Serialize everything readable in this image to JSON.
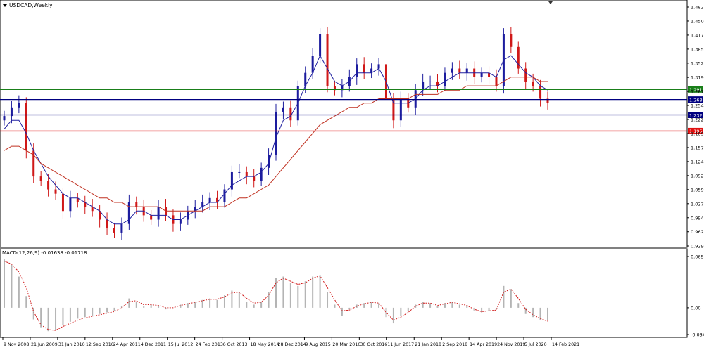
{
  "main_chart": {
    "title": "USDCAD,Weekly",
    "y_axis_ticks": [
      "1.4825",
      "1.4500",
      "1.4175",
      "1.3850",
      "1.3525",
      "1.3195",
      "1.2870",
      "1.2545",
      "1.2220",
      "1.1895",
      "1.1570",
      "1.1245",
      "1.0920",
      "1.0595",
      "1.0270",
      "0.9945",
      "0.9620",
      "0.9290"
    ],
    "levels": [
      {
        "value": 1.2915,
        "label": "1.2915",
        "color": "#1a7f1a"
      },
      {
        "value": 1.2682,
        "label": "1.2682",
        "color": "#000080"
      },
      {
        "value": 1.2326,
        "label": "1.2326",
        "color": "#000080"
      },
      {
        "value": 1.1953,
        "label": "1.1953",
        "color": "#e01010"
      }
    ]
  },
  "macd_panel": {
    "title": "MACD(12,26,9) -0.01638 -0.01718",
    "y_axis_ticks": [
      "0.06573",
      "0.00",
      "-0.03436"
    ]
  },
  "x_axis_labels": [
    "9 Nov 2008",
    "21 Jun 2009",
    "31 Jan 2010",
    "12 Sep 2010",
    "24 Apr 2011",
    "4 Dec 2011",
    "15 Jul 2012",
    "24 Feb 2013",
    "6 Oct 2013",
    "18 May 2014",
    "28 Dec 2014",
    "9 Aug 2015",
    "20 Mar 2016",
    "30 Oct 2016",
    "11 Jun 2017",
    "21 Jan 2018",
    "2 Sep 2018",
    "14 Apr 2019",
    "24 Nov 2019",
    "5 Jul 2020",
    "14 Feb 2021"
  ],
  "colors": {
    "bull_candle": "#1c1c9e",
    "bear_candle": "#d01818",
    "ma_fast": "#2020a0",
    "ma_slow": "#c03020",
    "macd_hist": "#b4b4b4",
    "macd_signal": "#d01818",
    "level_green": "#1a7f1a",
    "level_navy": "#000080",
    "level_red": "#e01010"
  },
  "chart_data": [
    {
      "type": "candlestick",
      "title": "USDCAD,Weekly",
      "ylim": [
        0.929,
        1.4825
      ],
      "x": [
        "2008-11",
        "2009-01",
        "2009-03",
        "2009-05",
        "2009-07",
        "2009-09",
        "2009-11",
        "2010-01",
        "2010-03",
        "2010-05",
        "2010-07",
        "2010-09",
        "2010-11",
        "2011-01",
        "2011-03",
        "2011-05",
        "2011-07",
        "2011-09",
        "2011-11",
        "2012-01",
        "2012-03",
        "2012-05",
        "2012-07",
        "2012-09",
        "2012-11",
        "2013-01",
        "2013-03",
        "2013-05",
        "2013-07",
        "2013-09",
        "2013-11",
        "2014-01",
        "2014-03",
        "2014-05",
        "2014-07",
        "2014-09",
        "2014-11",
        "2015-01",
        "2015-03",
        "2015-05",
        "2015-07",
        "2015-09",
        "2015-11",
        "2016-01",
        "2016-03",
        "2016-05",
        "2016-07",
        "2016-09",
        "2016-11",
        "2017-01",
        "2017-03",
        "2017-05",
        "2017-07",
        "2017-09",
        "2017-11",
        "2018-01",
        "2018-03",
        "2018-05",
        "2018-07",
        "2018-09",
        "2018-11",
        "2019-01",
        "2019-03",
        "2019-05",
        "2019-07",
        "2019-09",
        "2019-11",
        "2020-01",
        "2020-03",
        "2020-05",
        "2020-07",
        "2020-09",
        "2020-11",
        "2021-01",
        "2021-02"
      ],
      "close": [
        1.23,
        1.25,
        1.26,
        1.15,
        1.09,
        1.08,
        1.06,
        1.05,
        1.01,
        1.04,
        1.03,
        1.02,
        1.01,
        0.99,
        0.97,
        0.96,
        0.98,
        1.03,
        1.02,
        1.0,
        0.99,
        1.02,
        1.0,
        0.98,
        0.99,
        1.01,
        1.02,
        1.03,
        1.04,
        1.03,
        1.06,
        1.1,
        1.1,
        1.09,
        1.08,
        1.11,
        1.14,
        1.24,
        1.25,
        1.22,
        1.3,
        1.33,
        1.37,
        1.42,
        1.3,
        1.29,
        1.3,
        1.32,
        1.35,
        1.33,
        1.34,
        1.35,
        1.27,
        1.22,
        1.27,
        1.25,
        1.29,
        1.31,
        1.31,
        1.3,
        1.33,
        1.34,
        1.33,
        1.34,
        1.32,
        1.33,
        1.32,
        1.3,
        1.42,
        1.39,
        1.34,
        1.31,
        1.3,
        1.27,
        1.26
      ],
      "series": [
        {
          "name": "",
          "kind": "moving-average-fast",
          "values": [
            1.2,
            1.22,
            1.22,
            1.19,
            1.15,
            1.12,
            1.09,
            1.07,
            1.05,
            1.04,
            1.04,
            1.03,
            1.02,
            1.01,
            0.99,
            0.98,
            0.98,
            0.99,
            1.01,
            1.01,
            1.0,
            1.0,
            1.0,
            0.99,
            0.99,
            1.0,
            1.01,
            1.02,
            1.03,
            1.03,
            1.05,
            1.07,
            1.08,
            1.09,
            1.09,
            1.1,
            1.12,
            1.18,
            1.22,
            1.23,
            1.26,
            1.3,
            1.33,
            1.37,
            1.34,
            1.31,
            1.3,
            1.31,
            1.33,
            1.33,
            1.33,
            1.34,
            1.31,
            1.26,
            1.26,
            1.26,
            1.27,
            1.29,
            1.3,
            1.3,
            1.31,
            1.32,
            1.33,
            1.33,
            1.33,
            1.33,
            1.33,
            1.32,
            1.36,
            1.37,
            1.35,
            1.33,
            1.32,
            1.3,
            1.29
          ]
        },
        {
          "name": "",
          "kind": "moving-average-slow",
          "values": [
            1.15,
            1.16,
            1.16,
            1.15,
            1.14,
            1.12,
            1.11,
            1.1,
            1.09,
            1.08,
            1.07,
            1.06,
            1.05,
            1.04,
            1.04,
            1.03,
            1.03,
            1.02,
            1.02,
            1.02,
            1.02,
            1.02,
            1.01,
            1.01,
            1.01,
            1.01,
            1.01,
            1.01,
            1.02,
            1.02,
            1.02,
            1.03,
            1.04,
            1.04,
            1.05,
            1.06,
            1.07,
            1.09,
            1.11,
            1.13,
            1.15,
            1.17,
            1.19,
            1.21,
            1.22,
            1.23,
            1.24,
            1.25,
            1.25,
            1.26,
            1.26,
            1.27,
            1.27,
            1.27,
            1.27,
            1.27,
            1.28,
            1.28,
            1.28,
            1.28,
            1.29,
            1.29,
            1.29,
            1.3,
            1.3,
            1.3,
            1.3,
            1.3,
            1.31,
            1.32,
            1.32,
            1.32,
            1.32,
            1.31,
            1.31
          ]
        }
      ],
      "horizontal_levels": [
        1.2915,
        1.2682,
        1.2326,
        1.1953
      ]
    },
    {
      "type": "bar",
      "title": "MACD(12,26,9) -0.01638 -0.01718",
      "ylim": [
        -0.03436,
        0.06573
      ],
      "x": [
        "2008-11",
        "2009-01",
        "2009-03",
        "2009-05",
        "2009-07",
        "2009-09",
        "2009-11",
        "2010-01",
        "2010-03",
        "2010-05",
        "2010-07",
        "2010-09",
        "2010-11",
        "2011-01",
        "2011-03",
        "2011-05",
        "2011-07",
        "2011-09",
        "2011-11",
        "2012-01",
        "2012-03",
        "2012-05",
        "2012-07",
        "2012-09",
        "2012-11",
        "2013-01",
        "2013-03",
        "2013-05",
        "2013-07",
        "2013-09",
        "2013-11",
        "2014-01",
        "2014-03",
        "2014-05",
        "2014-07",
        "2014-09",
        "2014-11",
        "2015-01",
        "2015-03",
        "2015-05",
        "2015-07",
        "2015-09",
        "2015-11",
        "2016-01",
        "2016-03",
        "2016-05",
        "2016-07",
        "2016-09",
        "2016-11",
        "2017-01",
        "2017-03",
        "2017-05",
        "2017-07",
        "2017-09",
        "2017-11",
        "2018-01",
        "2018-03",
        "2018-05",
        "2018-07",
        "2018-09",
        "2018-11",
        "2019-01",
        "2019-03",
        "2019-05",
        "2019-07",
        "2019-09",
        "2019-11",
        "2020-01",
        "2020-03",
        "2020-05",
        "2020-07",
        "2020-09",
        "2020-11",
        "2021-01",
        "2021-02"
      ],
      "series": [
        {
          "name": "",
          "kind": "histogram",
          "values": [
            0.062,
            0.055,
            0.04,
            0.015,
            -0.015,
            -0.025,
            -0.03,
            -0.028,
            -0.022,
            -0.018,
            -0.014,
            -0.012,
            -0.01,
            -0.008,
            -0.006,
            -0.004,
            0.002,
            0.012,
            0.008,
            0.002,
            0.004,
            0.003,
            -0.002,
            0.0,
            0.004,
            0.006,
            0.008,
            0.01,
            0.012,
            0.01,
            0.016,
            0.022,
            0.02,
            0.008,
            0.004,
            0.008,
            0.02,
            0.038,
            0.04,
            0.032,
            0.028,
            0.034,
            0.04,
            0.042,
            0.02,
            0.004,
            -0.01,
            -0.002,
            0.004,
            0.006,
            0.008,
            0.006,
            -0.012,
            -0.02,
            -0.01,
            -0.004,
            0.004,
            0.008,
            0.006,
            0.002,
            0.006,
            0.008,
            0.004,
            0.002,
            -0.004,
            -0.006,
            -0.004,
            -0.002,
            0.028,
            0.024,
            0.006,
            -0.008,
            -0.012,
            -0.016,
            -0.0164
          ]
        },
        {
          "name": "",
          "kind": "signal",
          "values": [
            0.06,
            0.056,
            0.046,
            0.026,
            -0.005,
            -0.022,
            -0.028,
            -0.029,
            -0.024,
            -0.02,
            -0.016,
            -0.013,
            -0.011,
            -0.009,
            -0.007,
            -0.005,
            0.0,
            0.008,
            0.009,
            0.004,
            0.004,
            0.003,
            0.0,
            0.0,
            0.003,
            0.005,
            0.007,
            0.009,
            0.011,
            0.011,
            0.014,
            0.019,
            0.02,
            0.012,
            0.006,
            0.007,
            0.016,
            0.032,
            0.038,
            0.034,
            0.03,
            0.032,
            0.038,
            0.041,
            0.026,
            0.01,
            -0.004,
            -0.003,
            0.002,
            0.005,
            0.007,
            0.006,
            -0.006,
            -0.016,
            -0.012,
            -0.006,
            0.002,
            0.006,
            0.006,
            0.003,
            0.005,
            0.007,
            0.005,
            0.003,
            -0.002,
            -0.005,
            -0.004,
            -0.003,
            0.02,
            0.024,
            0.012,
            -0.002,
            -0.009,
            -0.014,
            -0.0172
          ]
        }
      ]
    }
  ]
}
